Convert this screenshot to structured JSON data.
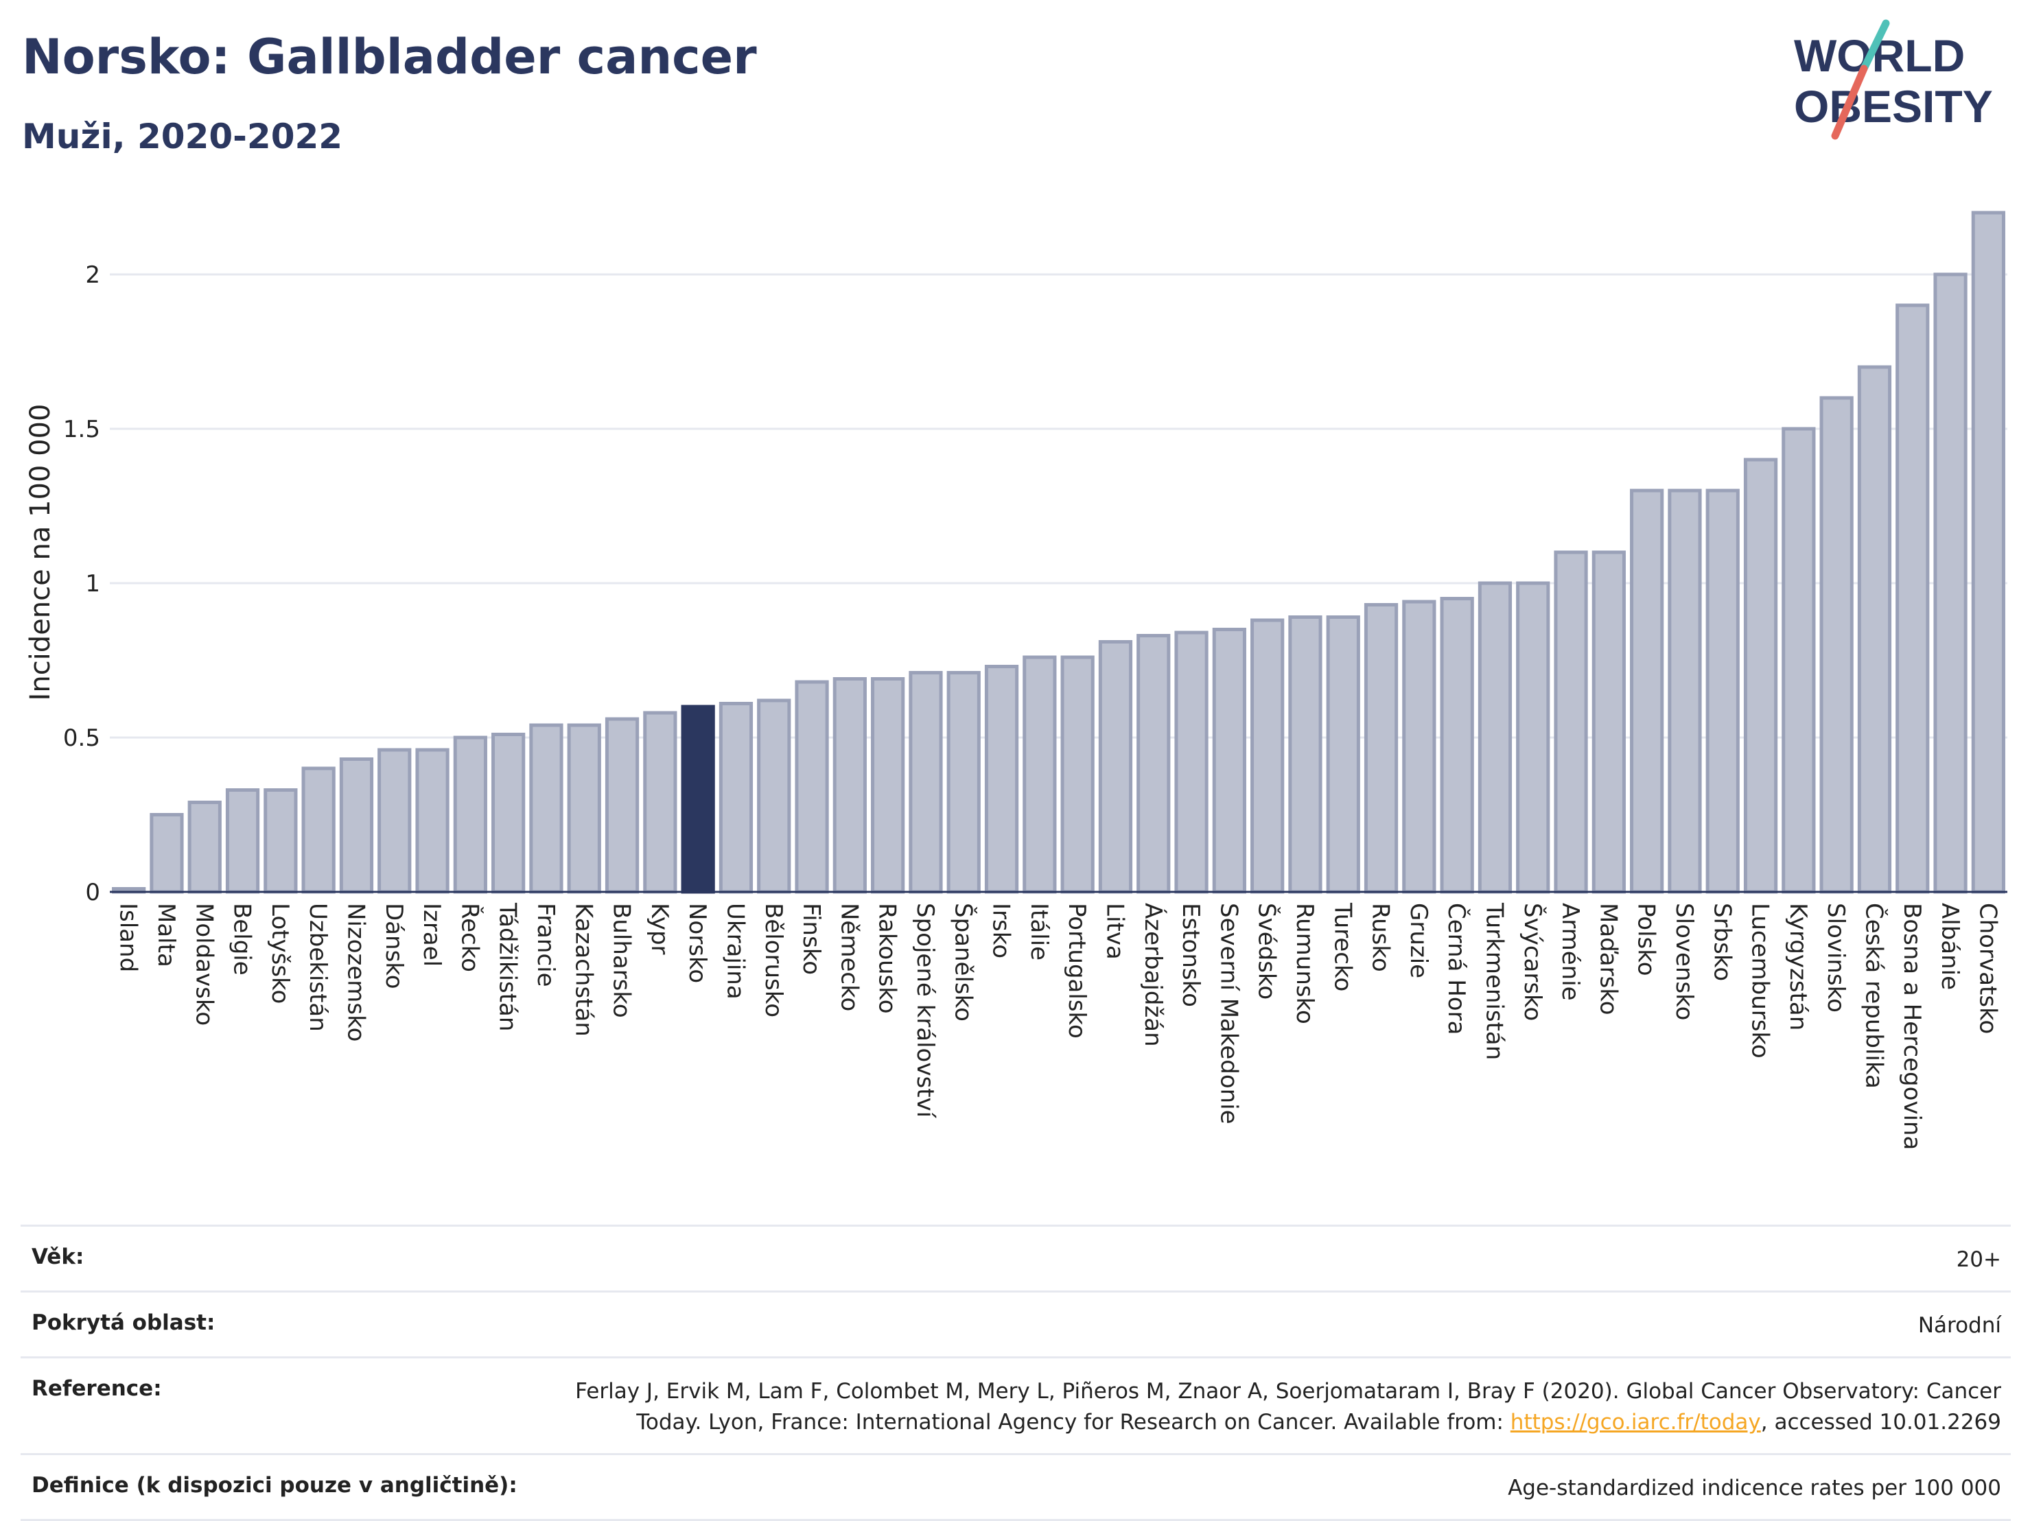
{
  "title": "Norsko: Gallbladder cancer",
  "subtitle": "Muži, 2020-2022",
  "logo": {
    "line1": "WORLD",
    "line2": "OBESITY"
  },
  "colors": {
    "title": "#2b375f",
    "bar": "#bcc1d0",
    "bar_stroke": "#9aa1b8",
    "highlight": "#2b375f",
    "grid": "#e6e8ef",
    "logo_slash_teal": "#4fc1b8",
    "logo_slash_red": "#e5675b"
  },
  "chart_data": {
    "type": "bar",
    "ylabel": "Incidence na 100 000",
    "ylim": [
      0,
      2.2
    ],
    "yticks": [
      0,
      0.5,
      1,
      1.5,
      2
    ],
    "ytick_labels": [
      "0",
      "0.5",
      "1",
      "1.5",
      "2"
    ],
    "highlight": "Norsko",
    "categories": [
      "Island",
      "Malta",
      "Moldavsko",
      "Belgie",
      "Lotyšsko",
      "Uzbekistán",
      "Nizozemsko",
      "Dánsko",
      "Izrael",
      "Řecko",
      "Tádžikistán",
      "Francie",
      "Kazachstán",
      "Bulharsko",
      "Kypr",
      "Norsko",
      "Ukrajina",
      "Bělorusko",
      "Finsko",
      "Německo",
      "Rakousko",
      "Spojené království",
      "Španělsko",
      "Irsko",
      "Itálie",
      "Portugalsko",
      "Litva",
      "Ázerbajdžán",
      "Estonsko",
      "Severní Makedonie",
      "Švédsko",
      "Rumunsko",
      "Turecko",
      "Rusko",
      "Gruzie",
      "Černá Hora",
      "Turkmenistán",
      "Švýcarsko",
      "Arménie",
      "Maďarsko",
      "Polsko",
      "Slovensko",
      "Srbsko",
      "Lucembursko",
      "Kyrgyzstán",
      "Slovinsko",
      "Česká republika",
      "Bosna a Hercegovina",
      "Albánie",
      "Chorvatsko"
    ],
    "values": [
      0.01,
      0.25,
      0.29,
      0.33,
      0.33,
      0.4,
      0.43,
      0.46,
      0.46,
      0.5,
      0.51,
      0.54,
      0.54,
      0.56,
      0.58,
      0.6,
      0.61,
      0.62,
      0.68,
      0.69,
      0.69,
      0.71,
      0.71,
      0.73,
      0.76,
      0.76,
      0.81,
      0.83,
      0.84,
      0.85,
      0.88,
      0.89,
      0.89,
      0.93,
      0.94,
      0.95,
      1.0,
      1.0,
      1.1,
      1.1,
      1.3,
      1.3,
      1.3,
      1.4,
      1.5,
      1.6,
      1.7,
      1.9,
      2.0,
      2.2
    ]
  },
  "meta": {
    "age_label": "Věk:",
    "age_value": "20+",
    "coverage_label": "Pokrytá oblast:",
    "coverage_value": "Národní",
    "reference_label": "Reference:",
    "reference_text_1": "Ferlay J, Ervik M, Lam F, Colombet M, Mery L, Piñeros M, Znaor A, Soerjomataram I, Bray F (2020). Global Cancer Observatory: Cancer",
    "reference_text_2": "Today. Lyon, France: International Agency for Research on Cancer. Available from: ",
    "reference_link": "https://gco.iarc.fr/today",
    "reference_text_3": ", accessed 10.01.2269",
    "definition_label": "Definice (k dispozici pouze v angličtině):",
    "definition_value": "Age-standardized indicence rates per 100 000"
  }
}
